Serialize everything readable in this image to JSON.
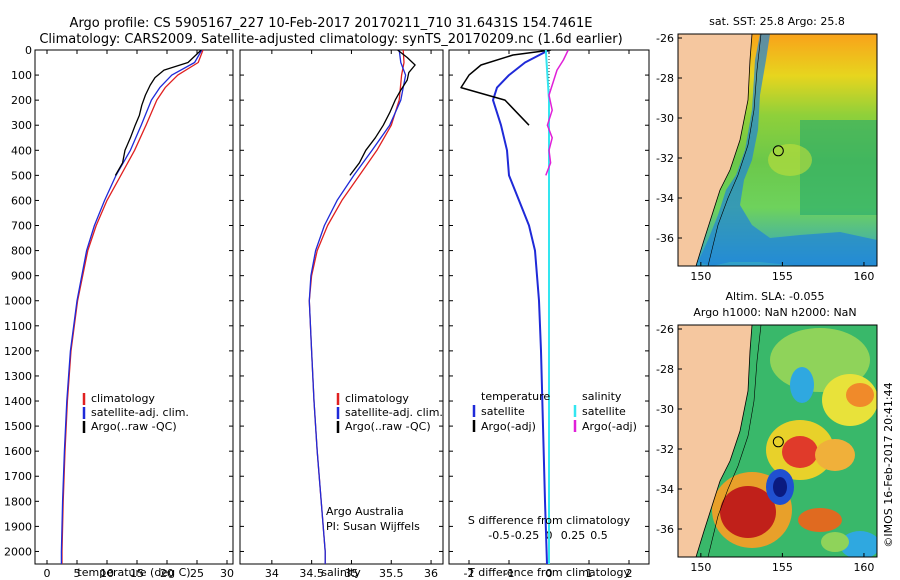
{
  "title": {
    "line1": "Argo profile: CS 5905167_227 10-Feb-2017 20170211_710 31.6431S 154.7461E",
    "line2": "Climatology: CARS2009. Satellite-adjusted climatology: synTS_20170209.nc (1.6d earlier)"
  },
  "legend_main": {
    "climatology": "climatology",
    "satellite": "satellite-adj. clim.",
    "argo": "Argo(..raw -QC)"
  },
  "legend_diff": {
    "temp_header": "temperature",
    "sal_header": "salinity",
    "satellite": "satellite",
    "argo": "Argo(-adj)"
  },
  "institution": {
    "line1": "Argo Australia",
    "line2": "PI: Susan Wijffels"
  },
  "diff_top_axis_label": "S difference from climatology",
  "map_sst": {
    "title": "sat. SST: 25.8 Argo: 25.8"
  },
  "map_sla": {
    "title1": "Altim. SLA: -0.055",
    "title2": "Argo h1000: NaN h2000: NaN"
  },
  "stamp": "©IMOS 16-Feb-2017 20:41:44",
  "colors": {
    "climatology": "#e02020",
    "satellite": "#1f2ad8",
    "argo": "#000000",
    "sat_salinity": "#33e6f0",
    "argo_salinity": "#e020d8",
    "land": "#f5c79f"
  },
  "chart_data": [
    {
      "type": "line",
      "xlabel": "temperature (deg C)",
      "ylabel": "",
      "xlim": [
        -2,
        31
      ],
      "ylim": [
        2050,
        0
      ],
      "x_ticks": [
        0,
        5,
        10,
        15,
        20,
        25,
        30
      ],
      "y_ticks": [
        0,
        100,
        200,
        300,
        400,
        500,
        600,
        700,
        800,
        900,
        1000,
        1100,
        1200,
        1300,
        1400,
        1500,
        1600,
        1700,
        1800,
        1900,
        2000
      ],
      "series": [
        {
          "name": "climatology",
          "depth": [
            0,
            50,
            100,
            150,
            200,
            300,
            400,
            500,
            600,
            700,
            800,
            1000,
            1200,
            1400,
            1600,
            1800,
            2000,
            2050
          ],
          "values": [
            26.0,
            25.2,
            21.8,
            19.7,
            18.3,
            16.5,
            14.6,
            12.3,
            10.0,
            8.2,
            6.8,
            5.1,
            4.0,
            3.4,
            3.0,
            2.7,
            2.5,
            2.5
          ]
        },
        {
          "name": "satellite-adj. clim.",
          "depth": [
            0,
            50,
            100,
            150,
            200,
            300,
            400,
            500,
            600,
            700,
            800,
            1000,
            1200,
            1400,
            1600,
            1800,
            2000,
            2050
          ],
          "values": [
            25.8,
            24.6,
            20.8,
            18.8,
            17.4,
            15.7,
            13.9,
            11.5,
            9.6,
            7.9,
            6.6,
            5.0,
            3.9,
            3.3,
            2.9,
            2.6,
            2.4,
            2.4
          ]
        },
        {
          "name": "Argo(..raw -QC)",
          "depth": [
            0,
            50,
            80,
            110,
            140,
            180,
            220,
            260,
            300,
            350,
            400,
            450,
            500
          ],
          "values": [
            25.7,
            23.5,
            19.5,
            18.0,
            17.2,
            16.4,
            15.8,
            15.4,
            14.7,
            13.9,
            13.0,
            12.6,
            11.4
          ]
        }
      ]
    },
    {
      "type": "line",
      "xlabel": "salinity",
      "xlim": [
        33.6,
        36.15
      ],
      "ylim": [
        2050,
        0
      ],
      "x_ticks": [
        34,
        34.5,
        35,
        35.5,
        36
      ],
      "series": [
        {
          "name": "climatology",
          "depth": [
            0,
            50,
            100,
            200,
            300,
            400,
            500,
            600,
            700,
            800,
            900,
            1000,
            1200,
            1400,
            1600,
            1800,
            2000,
            2050
          ],
          "values": [
            35.65,
            35.66,
            35.63,
            35.6,
            35.5,
            35.32,
            35.1,
            34.88,
            34.7,
            34.57,
            34.5,
            34.47,
            34.5,
            34.53,
            34.57,
            34.62,
            34.67,
            34.67
          ]
        },
        {
          "name": "satellite-adj. clim.",
          "depth": [
            0,
            50,
            100,
            200,
            300,
            400,
            500,
            600,
            700,
            800,
            900,
            1000,
            1200,
            1400,
            1600,
            1800,
            2000,
            2050
          ],
          "values": [
            35.6,
            35.62,
            35.68,
            35.62,
            35.48,
            35.26,
            35.03,
            34.82,
            34.66,
            34.55,
            34.49,
            34.47,
            34.5,
            34.53,
            34.57,
            34.62,
            34.67,
            34.67
          ]
        },
        {
          "name": "Argo(..raw -QC)",
          "depth": [
            0,
            30,
            60,
            90,
            120,
            160,
            200,
            250,
            300,
            350,
            400,
            450,
            500
          ],
          "values": [
            35.58,
            35.7,
            35.8,
            35.72,
            35.7,
            35.62,
            35.55,
            35.48,
            35.4,
            35.3,
            35.18,
            35.1,
            34.98
          ]
        }
      ]
    },
    {
      "type": "line",
      "xlabel": "T difference from climatology",
      "top_xlabel": "S difference from climatology",
      "xlim": [
        -2.5,
        2.5
      ],
      "ylim": [
        2050,
        0
      ],
      "x_ticks": [
        -2,
        -1,
        0,
        1,
        2
      ],
      "top_ticks": [
        "-0.5",
        "-0.25",
        "0",
        "0.25",
        "0.5"
      ],
      "series": [
        {
          "name": "temperature satellite",
          "depth": [
            0,
            50,
            100,
            150,
            200,
            300,
            400,
            500,
            600,
            700,
            800,
            1000,
            1200,
            1500,
            1800,
            2050
          ],
          "values": [
            0.0,
            -0.6,
            -1.0,
            -1.3,
            -1.4,
            -1.2,
            -1.05,
            -1.0,
            -0.75,
            -0.5,
            -0.35,
            -0.25,
            -0.2,
            -0.15,
            -0.1,
            -0.05
          ]
        },
        {
          "name": "temperature Argo(-adj)",
          "depth": [
            0,
            20,
            60,
            100,
            150,
            200,
            250,
            300
          ],
          "values": [
            0.05,
            -0.9,
            -1.7,
            -2.0,
            -2.2,
            -1.1,
            -0.8,
            -0.5
          ]
        },
        {
          "name": "salinity satellite",
          "depth": [
            0,
            100,
            200,
            400,
            600,
            1000,
            1500,
            2050
          ],
          "values": [
            -0.02,
            -0.01,
            0.0,
            0.0,
            0.0,
            0.0,
            0.0,
            0.0
          ]
        },
        {
          "name": "salinity Argo(-adj)",
          "depth": [
            0,
            40,
            80,
            120,
            180,
            240,
            300,
            350,
            400,
            450,
            500
          ],
          "values": [
            0.12,
            0.09,
            0.05,
            0.03,
            0.0,
            0.02,
            -0.01,
            0.02,
            0.0,
            0.01,
            -0.02
          ]
        }
      ]
    },
    {
      "type": "heatmap",
      "title": "sat. SST: 25.8 Argo: 25.8",
      "x_ticks": [
        150,
        155,
        160
      ],
      "y_ticks": [
        -26,
        -28,
        -30,
        -32,
        -34,
        -36
      ],
      "xlim": [
        148.6,
        160.8
      ],
      "ylim": [
        -37.4,
        -25.8
      ],
      "argo_position": [
        154.75,
        -31.64
      ]
    },
    {
      "type": "heatmap",
      "title": "Altim. SLA: -0.055",
      "x_ticks": [
        150,
        155,
        160
      ],
      "y_ticks": [
        -26,
        -28,
        -30,
        -32,
        -34,
        -36
      ],
      "xlim": [
        148.6,
        160.8
      ],
      "ylim": [
        -37.4,
        -25.8
      ],
      "argo_position": [
        154.75,
        -31.64
      ]
    }
  ]
}
